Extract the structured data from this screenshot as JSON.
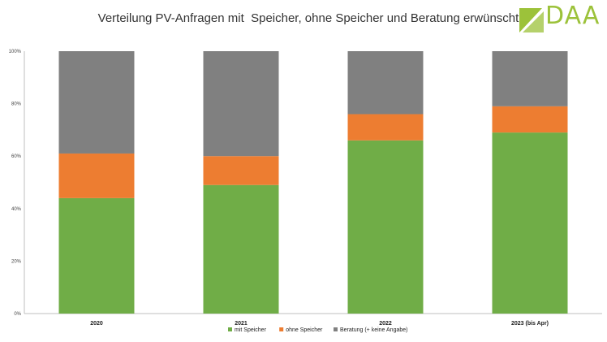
{
  "header": {
    "title": "Verteilung PV-Anfragen mit  Speicher, ohne Speicher und Beratung erwünscht",
    "logo_text": "DAA",
    "logo_color": "#9cc23a"
  },
  "chart_data": {
    "type": "bar",
    "stacked": true,
    "title": "Verteilung PV-Anfragen mit  Speicher, ohne Speicher und Beratung erwünscht",
    "categories": [
      "2020",
      "2021",
      "2022",
      "2023 (bis Apr)"
    ],
    "series": [
      {
        "name": "mit Speicher",
        "color": "#70ad47",
        "values": [
          44,
          49,
          66,
          69
        ]
      },
      {
        "name": "ohne Speicher",
        "color": "#ed7d31",
        "values": [
          17,
          11,
          10,
          10
        ]
      },
      {
        "name": "Beratung (+ keine Angabe)",
        "color": "#808080",
        "values": [
          39,
          40,
          24,
          21
        ]
      }
    ],
    "yticks": [
      "0%",
      "20%",
      "40%",
      "60%",
      "80%",
      "100%"
    ],
    "ylim": [
      0,
      100
    ],
    "xlabel": "",
    "ylabel": "",
    "grid": false,
    "legend": "bottom"
  }
}
